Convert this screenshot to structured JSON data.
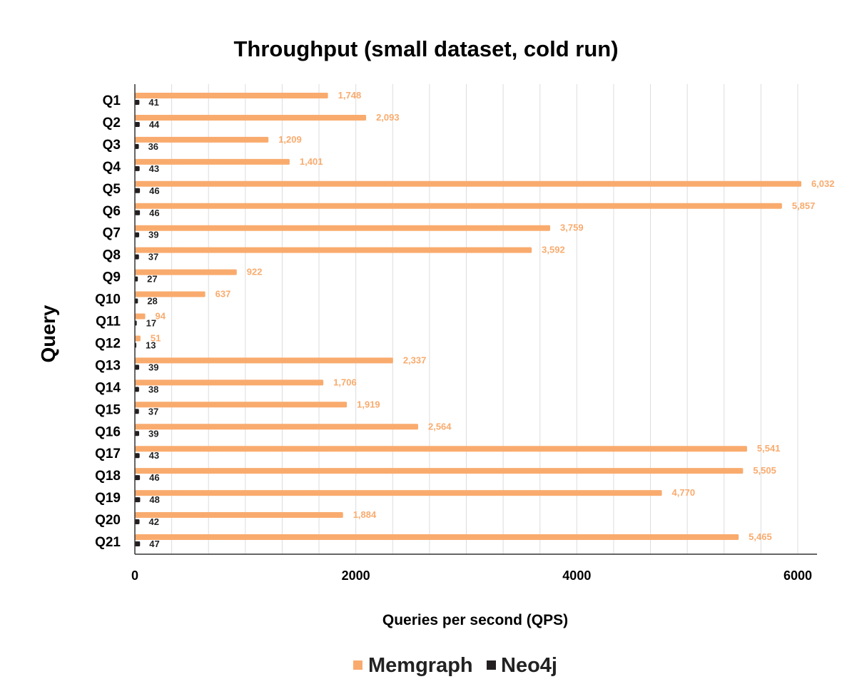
{
  "chart_data": {
    "type": "bar",
    "orientation": "horizontal",
    "title": "Throughput (small dataset, cold run)",
    "xlabel": "Queries per second (QPS)",
    "ylabel": "Query",
    "xlim": [
      0,
      6200
    ],
    "x_ticks": [
      "0",
      "2000",
      "4000",
      "6000"
    ],
    "x_tick_values": [
      0,
      2000,
      4000,
      6000
    ],
    "grid": "vertical",
    "legend_position": "bottom",
    "categories": [
      "Q1",
      "Q2",
      "Q3",
      "Q4",
      "Q5",
      "Q6",
      "Q7",
      "Q8",
      "Q9",
      "Q10",
      "Q11",
      "Q12",
      "Q13",
      "Q14",
      "Q15",
      "Q16",
      "Q17",
      "Q18",
      "Q19",
      "Q20",
      "Q21"
    ],
    "series": [
      {
        "name": "Memgraph",
        "color": "#F9AB6E",
        "values": [
          1748,
          2093,
          1209,
          1401,
          6032,
          5857,
          3759,
          3592,
          922,
          637,
          94,
          51,
          2337,
          1706,
          1919,
          2564,
          5541,
          5505,
          4770,
          1884,
          5465
        ],
        "labels": [
          "1,748",
          "2,093",
          "1,209",
          "1,401",
          "6,032",
          "5,857",
          "3,759",
          "3,592",
          "922",
          "637",
          "94",
          "51",
          "2,337",
          "1,706",
          "1,919",
          "2,564",
          "5,541",
          "5,505",
          "4,770",
          "1,884",
          "5,465"
        ]
      },
      {
        "name": "Neo4j",
        "color": "#231F20",
        "values": [
          41,
          44,
          36,
          43,
          46,
          46,
          39,
          37,
          27,
          28,
          17,
          13,
          39,
          38,
          37,
          39,
          43,
          46,
          48,
          42,
          47
        ],
        "labels": [
          "41",
          "44",
          "36",
          "43",
          "46",
          "46",
          "39",
          "37",
          "27",
          "28",
          "17",
          "13",
          "39",
          "38",
          "37",
          "39",
          "43",
          "46",
          "48",
          "42",
          "47"
        ]
      }
    ]
  }
}
